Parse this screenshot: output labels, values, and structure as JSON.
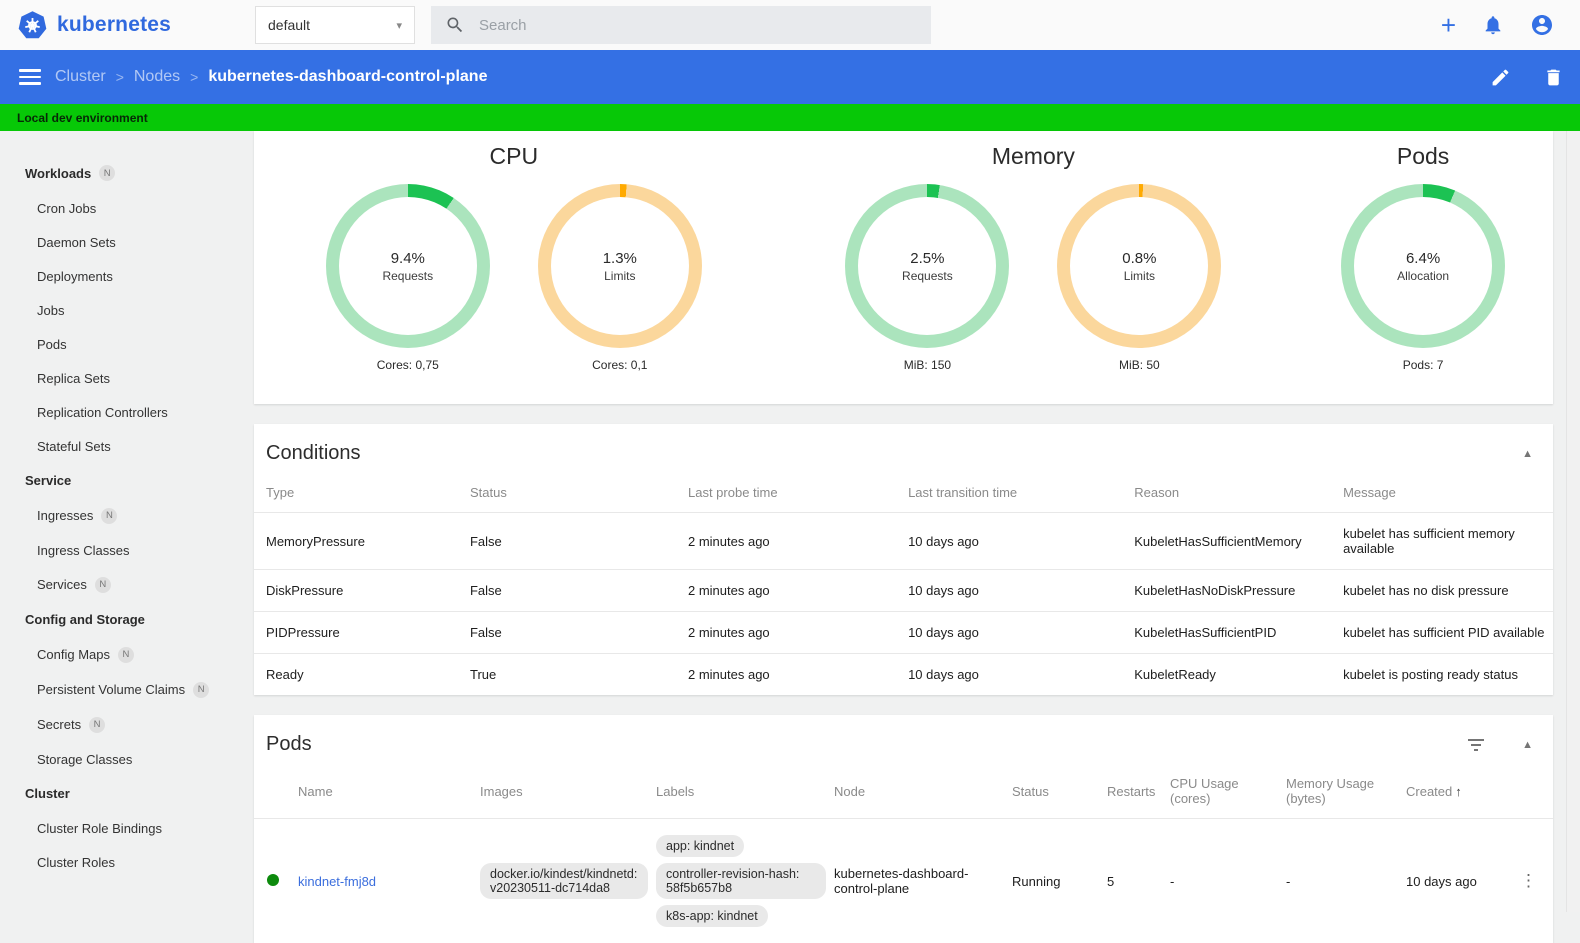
{
  "topbar": {
    "brand": "kubernetes",
    "namespace": {
      "value": "default"
    },
    "search": {
      "placeholder": "Search"
    }
  },
  "breadcrumb": {
    "path": [
      "Cluster",
      "Nodes"
    ],
    "current": "kubernetes-dashboard-control-plane"
  },
  "banner": {
    "text": "Local dev environment"
  },
  "sidebar": {
    "sections": [
      {
        "label": "Workloads",
        "badge": "N",
        "items": [
          {
            "label": "Cron Jobs"
          },
          {
            "label": "Daemon Sets"
          },
          {
            "label": "Deployments"
          },
          {
            "label": "Jobs"
          },
          {
            "label": "Pods"
          },
          {
            "label": "Replica Sets"
          },
          {
            "label": "Replication Controllers"
          },
          {
            "label": "Stateful Sets"
          }
        ]
      },
      {
        "label": "Service",
        "items": [
          {
            "label": "Ingresses",
            "badge": "N"
          },
          {
            "label": "Ingress Classes"
          },
          {
            "label": "Services",
            "badge": "N"
          }
        ]
      },
      {
        "label": "Config and Storage",
        "items": [
          {
            "label": "Config Maps",
            "badge": "N"
          },
          {
            "label": "Persistent Volume Claims",
            "badge": "N"
          },
          {
            "label": "Secrets",
            "badge": "N"
          },
          {
            "label": "Storage Classes"
          }
        ]
      },
      {
        "label": "Cluster",
        "items": [
          {
            "label": "Cluster Role Bindings"
          },
          {
            "label": "Cluster Roles"
          }
        ]
      }
    ]
  },
  "chart_data": [
    {
      "type": "pie",
      "title": "CPU",
      "gauges": [
        {
          "percent": 9.4,
          "value_text": "9.4%",
          "label": "Requests",
          "caption": "Cores: 0,75",
          "color": "green"
        },
        {
          "percent": 1.3,
          "value_text": "1.3%",
          "label": "Limits",
          "caption": "Cores: 0,1",
          "color": "orange"
        }
      ]
    },
    {
      "type": "pie",
      "title": "Memory",
      "gauges": [
        {
          "percent": 2.5,
          "value_text": "2.5%",
          "label": "Requests",
          "caption": "MiB: 150",
          "color": "green"
        },
        {
          "percent": 0.8,
          "value_text": "0.8%",
          "label": "Limits",
          "caption": "MiB: 50",
          "color": "orange"
        }
      ]
    },
    {
      "type": "pie",
      "title": "Pods",
      "gauges": [
        {
          "percent": 6.4,
          "value_text": "6.4%",
          "label": "Allocation",
          "caption": "Pods: 7",
          "color": "green"
        }
      ]
    }
  ],
  "conditions": {
    "title": "Conditions",
    "columns": [
      "Type",
      "Status",
      "Last probe time",
      "Last transition time",
      "Reason",
      "Message"
    ],
    "rows": [
      {
        "type": "MemoryPressure",
        "status": "False",
        "probe": "2 minutes ago",
        "transition": "10 days ago",
        "reason": "KubeletHasSufficientMemory",
        "message": "kubelet has sufficient memory available"
      },
      {
        "type": "DiskPressure",
        "status": "False",
        "probe": "2 minutes ago",
        "transition": "10 days ago",
        "reason": "KubeletHasNoDiskPressure",
        "message": "kubelet has no disk pressure"
      },
      {
        "type": "PIDPressure",
        "status": "False",
        "probe": "2 minutes ago",
        "transition": "10 days ago",
        "reason": "KubeletHasSufficientPID",
        "message": "kubelet has sufficient PID available"
      },
      {
        "type": "Ready",
        "status": "True",
        "probe": "2 minutes ago",
        "transition": "10 days ago",
        "reason": "KubeletReady",
        "message": "kubelet is posting ready status"
      }
    ]
  },
  "pods": {
    "title": "Pods",
    "columns": [
      "Name",
      "Images",
      "Labels",
      "Node",
      "Status",
      "Restarts",
      "CPU Usage (cores)",
      "Memory Usage (bytes)",
      "Created"
    ],
    "sort_column": "Created",
    "rows": [
      {
        "status_ok": true,
        "name": "kindnet-fmj8d",
        "images": [
          "docker.io/kindest/kindnetd:v20230511-dc714da8"
        ],
        "labels": [
          "app: kindnet",
          "controller-revision-hash: 58f5b657b8",
          "k8s-app: kindnet"
        ],
        "node": "kubernetes-dashboard-control-plane",
        "status": "Running",
        "restarts": "5",
        "cpu_usage": "-",
        "memory_usage": "-",
        "created": "10 days ago"
      }
    ]
  },
  "colors": {
    "accent": "#3470e4",
    "banner_green": "#07c807",
    "arc_green": "#1cc253",
    "track_green": "#abe4bd",
    "arc_orange": "#ffaa00",
    "track_orange": "#fbd79c",
    "link": "#3b6edd",
    "status_dot_green": "#0d8a0d"
  }
}
